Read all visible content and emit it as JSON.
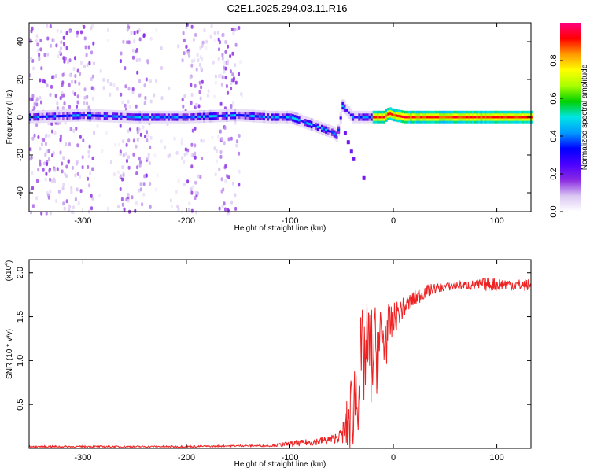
{
  "chart_data": [
    {
      "type": "heatmap",
      "title": "C2E1.2025.294.03.11.R16",
      "xlabel": "Height of straight line (km)",
      "ylabel": "Frequency (Hz)",
      "xlim": [
        -352,
        133
      ],
      "ylim": [
        -50,
        50
      ],
      "xticks": [
        -300,
        -200,
        -100,
        0,
        100
      ],
      "yticks": [
        -40,
        -20,
        0,
        20,
        40
      ],
      "colorbar": {
        "label": "Normalized spectral amplitude",
        "range": [
          0,
          1
        ],
        "ticks": [
          "0.0",
          "0.2",
          "0.4",
          "0.6",
          "0.8"
        ],
        "colors": [
          "#ffffff",
          "#d9c6f2",
          "#8b2be2",
          "#4b00ff",
          "#0000ff",
          "#0099ff",
          "#00e5e5",
          "#00d000",
          "#aaff00",
          "#ffff00",
          "#ff9900",
          "#ff0000",
          "#ff0080"
        ]
      },
      "ridge": {
        "x": [
          -352,
          -300,
          -250,
          -200,
          -150,
          -120,
          -100,
          -85,
          -70,
          -60,
          -55,
          -50,
          -45,
          -40,
          -30,
          -20,
          -10,
          -5,
          0,
          10,
          50,
          90,
          133
        ],
        "y": [
          0,
          1,
          0,
          0,
          1,
          0,
          0,
          -3,
          -6,
          -8,
          -10,
          6,
          3,
          0,
          0,
          0,
          0,
          2,
          1,
          0,
          0,
          0,
          0
        ]
      }
    },
    {
      "type": "line",
      "title": "",
      "xlabel": "Height of straight line (km)",
      "ylabel": "SNR (10 * v/v)",
      "scale_label": "(x10",
      "scale_exponent": "4",
      "xlim": [
        -352,
        133
      ],
      "ylim": [
        0,
        2.15
      ],
      "xticks": [
        -300,
        -200,
        -100,
        0,
        100
      ],
      "yticks": [
        0.5,
        1.0,
        1.5,
        2.0
      ],
      "ytick_labels": [
        "0.5",
        "1.0",
        "1.5",
        "2.0"
      ],
      "series": [
        {
          "color": "#ee2222",
          "x": [
            -352,
            -300,
            -250,
            -200,
            -150,
            -120,
            -100,
            -80,
            -60,
            -50,
            -45,
            -40,
            -35,
            -30,
            -25,
            -20,
            -15,
            -10,
            -5,
            0,
            5,
            10,
            20,
            30,
            40,
            50,
            60,
            70,
            80,
            90,
            100,
            110,
            120,
            133
          ],
          "y": [
            0.02,
            0.02,
            0.02,
            0.02,
            0.03,
            0.03,
            0.05,
            0.07,
            0.1,
            0.15,
            0.25,
            0.45,
            0.7,
            1.0,
            1.1,
            1.05,
            1.15,
            1.2,
            1.35,
            1.45,
            1.55,
            1.6,
            1.7,
            1.78,
            1.82,
            1.84,
            1.85,
            1.86,
            1.86,
            1.87,
            1.87,
            1.87,
            1.86,
            1.86
          ],
          "noise_amplitude": [
            0.01,
            0.01,
            0.01,
            0.01,
            0.01,
            0.01,
            0.03,
            0.04,
            0.05,
            0.08,
            0.3,
            0.5,
            0.6,
            0.6,
            0.6,
            0.6,
            0.5,
            0.5,
            0.3,
            0.2,
            0.15,
            0.12,
            0.1,
            0.08,
            0.06,
            0.05,
            0.05,
            0.05,
            0.06,
            0.08,
            0.08,
            0.07,
            0.07,
            0.07
          ]
        }
      ]
    }
  ]
}
